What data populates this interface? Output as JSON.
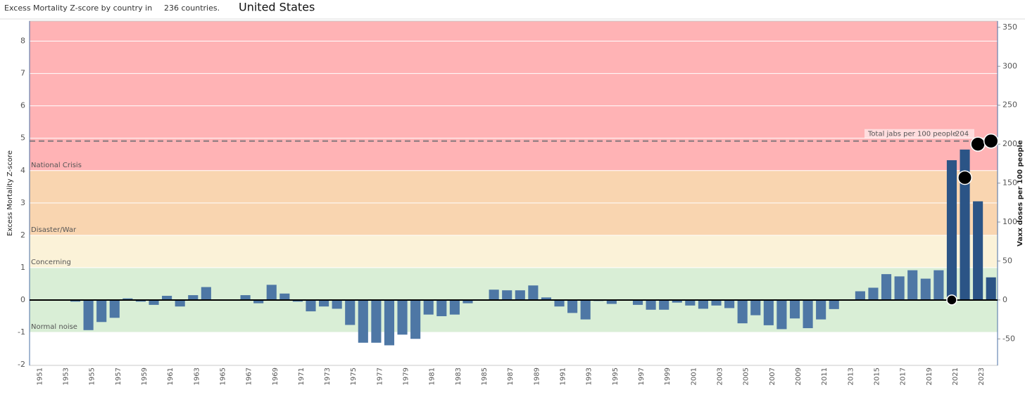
{
  "chart_data": {
    "type": "bar",
    "title": "United States",
    "subtitle": "Excess Mortality Z-score by country in",
    "subtitle_count": "236 countries.",
    "ylabel": "Excess Mortality Z-score",
    "y2label": "Vaxx doses per 100 people",
    "categories": [
      "1951",
      null,
      "1953",
      null,
      "1955",
      null,
      "1957",
      null,
      "1959",
      null,
      "1961",
      null,
      "1963",
      null,
      "1965",
      null,
      "1967",
      null,
      "1969",
      null,
      "1971",
      null,
      "1973",
      null,
      "1975",
      null,
      "1977",
      null,
      "1979",
      null,
      "1981",
      null,
      "1983",
      null,
      "1985",
      null,
      "1987",
      null,
      "1989",
      null,
      "1991",
      null,
      "1993",
      null,
      "1995",
      null,
      "1997",
      null,
      "1999",
      null,
      "2001",
      null,
      "2003",
      null,
      "2005",
      null,
      "2007",
      null,
      "2009",
      null,
      "2011",
      null,
      "2013",
      null,
      "2015",
      null,
      "2017",
      null,
      "2019",
      null,
      "2021",
      null,
      "2023",
      null
    ],
    "series": [
      {
        "name": "Excess Mortality Z-score",
        "color": "#4e77a5",
        "highlight_color": "#2b5486",
        "highlight_from": 70,
        "values": [
          0,
          0,
          0,
          -0.05,
          -0.93,
          -0.68,
          -0.55,
          0.05,
          -0.05,
          -0.15,
          0.13,
          -0.2,
          0.15,
          0.4,
          0.02,
          -0.02,
          0.15,
          -0.1,
          0.47,
          0.2,
          -0.05,
          -0.35,
          -0.2,
          -0.27,
          -0.77,
          -1.32,
          -1.32,
          -1.4,
          -1.07,
          -1.2,
          -0.45,
          -0.5,
          -0.45,
          -0.1,
          0.02,
          0.32,
          0.3,
          0.3,
          0.45,
          0.08,
          -0.2,
          -0.4,
          -0.6,
          -0.03,
          -0.12,
          0,
          -0.15,
          -0.3,
          -0.3,
          -0.08,
          -0.17,
          -0.27,
          -0.17,
          -0.25,
          -0.72,
          -0.47,
          -0.78,
          -0.9,
          -0.57,
          -0.87,
          -0.6,
          -0.28,
          0.02,
          0.27,
          0.38,
          0.8,
          0.73,
          0.92,
          0.66,
          0.92,
          4.32,
          4.65,
          3.05,
          0.7
        ]
      },
      {
        "name": "Vaxx doses per 100 people",
        "type": "scatter",
        "axis": "y2",
        "color": "#000000",
        "values": [
          null,
          null,
          null,
          null,
          null,
          null,
          null,
          null,
          null,
          null,
          null,
          null,
          null,
          null,
          null,
          null,
          null,
          null,
          null,
          null,
          null,
          null,
          null,
          null,
          null,
          null,
          null,
          null,
          null,
          null,
          null,
          null,
          null,
          null,
          null,
          null,
          null,
          null,
          null,
          null,
          null,
          null,
          null,
          null,
          null,
          null,
          null,
          null,
          null,
          null,
          null,
          null,
          null,
          null,
          null,
          null,
          null,
          null,
          null,
          null,
          null,
          null,
          null,
          null,
          null,
          null,
          null,
          null,
          null,
          null,
          0,
          157,
          200,
          204
        ],
        "sizes": [
          null,
          null,
          null,
          null,
          null,
          null,
          null,
          null,
          null,
          null,
          null,
          null,
          null,
          null,
          null,
          null,
          null,
          null,
          null,
          null,
          null,
          null,
          null,
          null,
          null,
          null,
          null,
          null,
          null,
          null,
          null,
          null,
          null,
          null,
          null,
          null,
          null,
          null,
          null,
          null,
          null,
          null,
          null,
          null,
          null,
          null,
          null,
          null,
          null,
          null,
          null,
          null,
          null,
          null,
          null,
          null,
          null,
          null,
          null,
          null,
          null,
          null,
          null,
          null,
          null,
          null,
          null,
          null,
          null,
          null,
          0,
          157,
          200,
          204
        ]
      }
    ],
    "bands": [
      {
        "from": 4,
        "to": 8.62,
        "label": "National Crisis",
        "color": "#ffb3b5"
      },
      {
        "from": 2,
        "to": 4,
        "label": "Disaster/War",
        "color": "#f9d5b0"
      },
      {
        "from": 1,
        "to": 2,
        "label": "Concerning",
        "color": "#fbf2d8"
      },
      {
        "from": -1,
        "to": 1,
        "label": "Normal noise",
        "color": "#d9eed6"
      }
    ],
    "reference_line": {
      "value": 204,
      "axis": "y2",
      "label": "Total jabs per 100 people",
      "color": "#9a8286"
    },
    "ylim": [
      -2.02,
      8.62
    ],
    "yticks": [
      -2,
      -1,
      0,
      1,
      2,
      3,
      4,
      5,
      6,
      7,
      8
    ],
    "y2lim": [
      -84,
      358
    ],
    "y2ticks": [
      -50,
      0,
      50,
      100,
      150,
      200,
      250,
      300,
      350
    ],
    "grid": true
  }
}
